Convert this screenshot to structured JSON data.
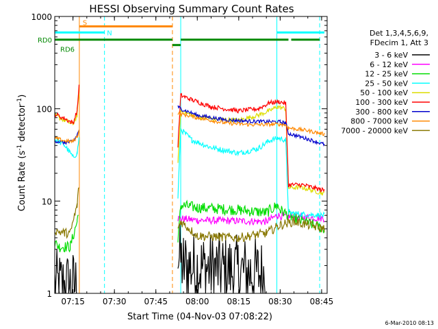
{
  "footer_date": "6-Mar-2010 08:13",
  "chart_data": {
    "type": "line",
    "title": "HESSI Observing Summary Count Rates",
    "xlabel": "Start Time (04-Nov-03 07:08:22)",
    "ylabel_main": "Count Rate (s",
    "ylabel_sup1": "-1",
    "ylabel_mid": " detector",
    "ylabel_sup2": "-1",
    "ylabel_end": ")",
    "yscale": "log",
    "ylim": [
      1,
      1000
    ],
    "xlim": [
      428.4,
      527.0
    ],
    "x_unit": "minutes of day (UT)",
    "x_ticks": [
      {
        "v": 435,
        "label": "07:15"
      },
      {
        "v": 450,
        "label": "07:30"
      },
      {
        "v": 465,
        "label": "07:45"
      },
      {
        "v": 480,
        "label": "08:00"
      },
      {
        "v": 495,
        "label": "08:15"
      },
      {
        "v": 510,
        "label": "08:30"
      },
      {
        "v": 525,
        "label": "08:45"
      }
    ],
    "y_ticks": [
      {
        "v": 1,
        "label": "1"
      },
      {
        "v": 10,
        "label": "10"
      },
      {
        "v": 100,
        "label": "100"
      },
      {
        "v": 1000,
        "label": "1000"
      }
    ],
    "legend_header": [
      "Det 1,3,4,5,6,9,",
      "FDecim 1, Att 3"
    ],
    "series": [
      {
        "name": "3 - 6 keV",
        "color": "#000000",
        "noise": 0.8,
        "pts": [
          [
            428.4,
            1.2
          ],
          [
            436.5,
            1.2
          ],
          [
            437,
            null
          ],
          [
            472.8,
            null
          ],
          [
            473,
            2.6
          ],
          [
            475,
            2.0
          ],
          [
            505,
            1.6
          ],
          [
            508,
            null
          ]
        ]
      },
      {
        "name": "6 - 12 keV",
        "color": "#ff00ff",
        "noise": 0.08,
        "pts": [
          [
            428.4,
            null
          ],
          [
            436.5,
            null
          ],
          [
            437,
            1.5
          ],
          [
            437.5,
            null
          ],
          [
            472.8,
            null
          ],
          [
            473,
            6.5
          ],
          [
            480,
            6.2
          ],
          [
            505,
            6.0
          ],
          [
            509,
            7.0
          ],
          [
            511,
            6.8
          ],
          [
            526,
            6.5
          ]
        ]
      },
      {
        "name": "12 - 25 keV",
        "color": "#00dd00",
        "noise": 0.12,
        "pts": [
          [
            428.4,
            3.5
          ],
          [
            430,
            3.2
          ],
          [
            434,
            3.2
          ],
          [
            436.5,
            6
          ],
          [
            437,
            8
          ],
          [
            437.5,
            null
          ],
          [
            472.8,
            null
          ],
          [
            473,
            3.5
          ],
          [
            474,
            9
          ],
          [
            480,
            8.5
          ],
          [
            495,
            8.0
          ],
          [
            505,
            7.5
          ],
          [
            509,
            9
          ],
          [
            510,
            8.0
          ],
          [
            515,
            6.5
          ],
          [
            526,
            5.0
          ]
        ]
      },
      {
        "name": "25 - 50 keV",
        "color": "#00ffff",
        "noise": 0.06,
        "pts": [
          [
            428.4,
            47
          ],
          [
            432,
            40
          ],
          [
            435,
            30
          ],
          [
            436.5,
            33
          ],
          [
            437.2,
            48
          ],
          [
            437.5,
            null
          ],
          [
            472.8,
            null
          ],
          [
            473,
            11
          ],
          [
            474,
            60
          ],
          [
            478,
            46
          ],
          [
            485,
            38
          ],
          [
            495,
            33
          ],
          [
            502,
            37
          ],
          [
            506,
            45
          ],
          [
            509,
            48
          ],
          [
            512,
            46
          ],
          [
            513,
            7.5
          ],
          [
            518,
            7.2
          ],
          [
            526,
            7.0
          ]
        ]
      },
      {
        "name": "50 - 100 keV",
        "color": "#dddd00",
        "noise": 0.05,
        "pts": [
          [
            428.4,
            85
          ],
          [
            432,
            75
          ],
          [
            435,
            68
          ],
          [
            436.5,
            85
          ],
          [
            437.2,
            150
          ],
          [
            437.5,
            null
          ],
          [
            472.8,
            null
          ],
          [
            473,
            25
          ],
          [
            474,
            95
          ],
          [
            478,
            85
          ],
          [
            485,
            78
          ],
          [
            495,
            75
          ],
          [
            502,
            85
          ],
          [
            506,
            95
          ],
          [
            509,
            105
          ],
          [
            512,
            100
          ],
          [
            513,
            14
          ],
          [
            518,
            14
          ],
          [
            526,
            12
          ]
        ]
      },
      {
        "name": "100 - 300 keV",
        "color": "#ff0000",
        "noise": 0.05,
        "pts": [
          [
            428.4,
            88
          ],
          [
            432,
            78
          ],
          [
            435,
            70
          ],
          [
            436.5,
            95
          ],
          [
            437.2,
            180
          ],
          [
            437.5,
            null
          ],
          [
            472.8,
            null
          ],
          [
            473,
            40
          ],
          [
            474,
            140
          ],
          [
            478,
            125
          ],
          [
            485,
            105
          ],
          [
            495,
            95
          ],
          [
            502,
            100
          ],
          [
            506,
            115
          ],
          [
            509,
            120
          ],
          [
            512,
            115
          ],
          [
            513,
            15
          ],
          [
            518,
            15
          ],
          [
            526,
            13
          ]
        ]
      },
      {
        "name": "300 - 800 keV",
        "color": "#0000cc",
        "noise": 0.04,
        "pts": [
          [
            428.4,
            45
          ],
          [
            432,
            43
          ],
          [
            435,
            44
          ],
          [
            436.5,
            52
          ],
          [
            437.2,
            60
          ],
          [
            437.5,
            null
          ],
          [
            472.8,
            null
          ],
          [
            473,
            105
          ],
          [
            474,
            100
          ],
          [
            480,
            85
          ],
          [
            490,
            76
          ],
          [
            500,
            73
          ],
          [
            510,
            72
          ],
          [
            512,
            70
          ],
          [
            513,
            54
          ],
          [
            520,
            47
          ],
          [
            526,
            41
          ]
        ]
      },
      {
        "name": "800 - 7000 keV",
        "color": "#ff8800",
        "noise": 0.04,
        "pts": [
          [
            428.4,
            48
          ],
          [
            432,
            45
          ],
          [
            435,
            44
          ],
          [
            436.5,
            50
          ],
          [
            437.2,
            58
          ],
          [
            437.5,
            null
          ],
          [
            472.8,
            null
          ],
          [
            473,
            90
          ],
          [
            474,
            88
          ],
          [
            480,
            80
          ],
          [
            490,
            70
          ],
          [
            500,
            67
          ],
          [
            510,
            68
          ],
          [
            512,
            67
          ],
          [
            513,
            62
          ],
          [
            520,
            58
          ],
          [
            526,
            53
          ]
        ]
      },
      {
        "name": "7000 - 20000 keV",
        "color": "#887700",
        "noise": 0.1,
        "pts": [
          [
            428.4,
            4.8
          ],
          [
            432,
            4.5
          ],
          [
            434,
            4.5
          ],
          [
            436.5,
            9
          ],
          [
            437.2,
            15
          ],
          [
            437.5,
            null
          ],
          [
            472.8,
            null
          ],
          [
            473,
            5
          ],
          [
            474,
            6
          ],
          [
            480,
            4.2
          ],
          [
            495,
            4.0
          ],
          [
            505,
            4.5
          ],
          [
            510,
            5.5
          ],
          [
            515,
            6.0
          ],
          [
            526,
            5.0
          ]
        ]
      }
    ],
    "attenuator_bars": [
      {
        "label": "S",
        "color": "#ff8800",
        "level": 780,
        "segments": [
          [
            437.3,
            471
          ]
        ]
      },
      {
        "label": "N",
        "color": "#00ffff",
        "level": 670,
        "segments": [
          [
            428.4,
            446.4
          ],
          [
            508.8,
            526
          ]
        ]
      },
      {
        "label": "RD0",
        "color": "#008800",
        "level": 560,
        "segments": [
          [
            428.4,
            471
          ],
          [
            474,
            513
          ],
          [
            514,
            524.3
          ]
        ]
      },
      {
        "label": "RD6",
        "color": "#008800",
        "level": 490,
        "segments": [
          [
            471,
            474
          ]
        ]
      }
    ],
    "vertical_lines": [
      {
        "x": 428.4,
        "color": "#00ffff",
        "style": "solid"
      },
      {
        "x": 437.3,
        "color": "#ff8800",
        "style": "solid"
      },
      {
        "x": 446.4,
        "color": "#00ffff",
        "style": "dashed"
      },
      {
        "x": 471.0,
        "color": "#ff8800",
        "style": "dashed"
      },
      {
        "x": 474.0,
        "color": "#00ffff",
        "style": "solid"
      },
      {
        "x": 508.8,
        "color": "#00ffff",
        "style": "solid"
      },
      {
        "x": 524.3,
        "color": "#00ffff",
        "style": "dashed"
      }
    ]
  }
}
